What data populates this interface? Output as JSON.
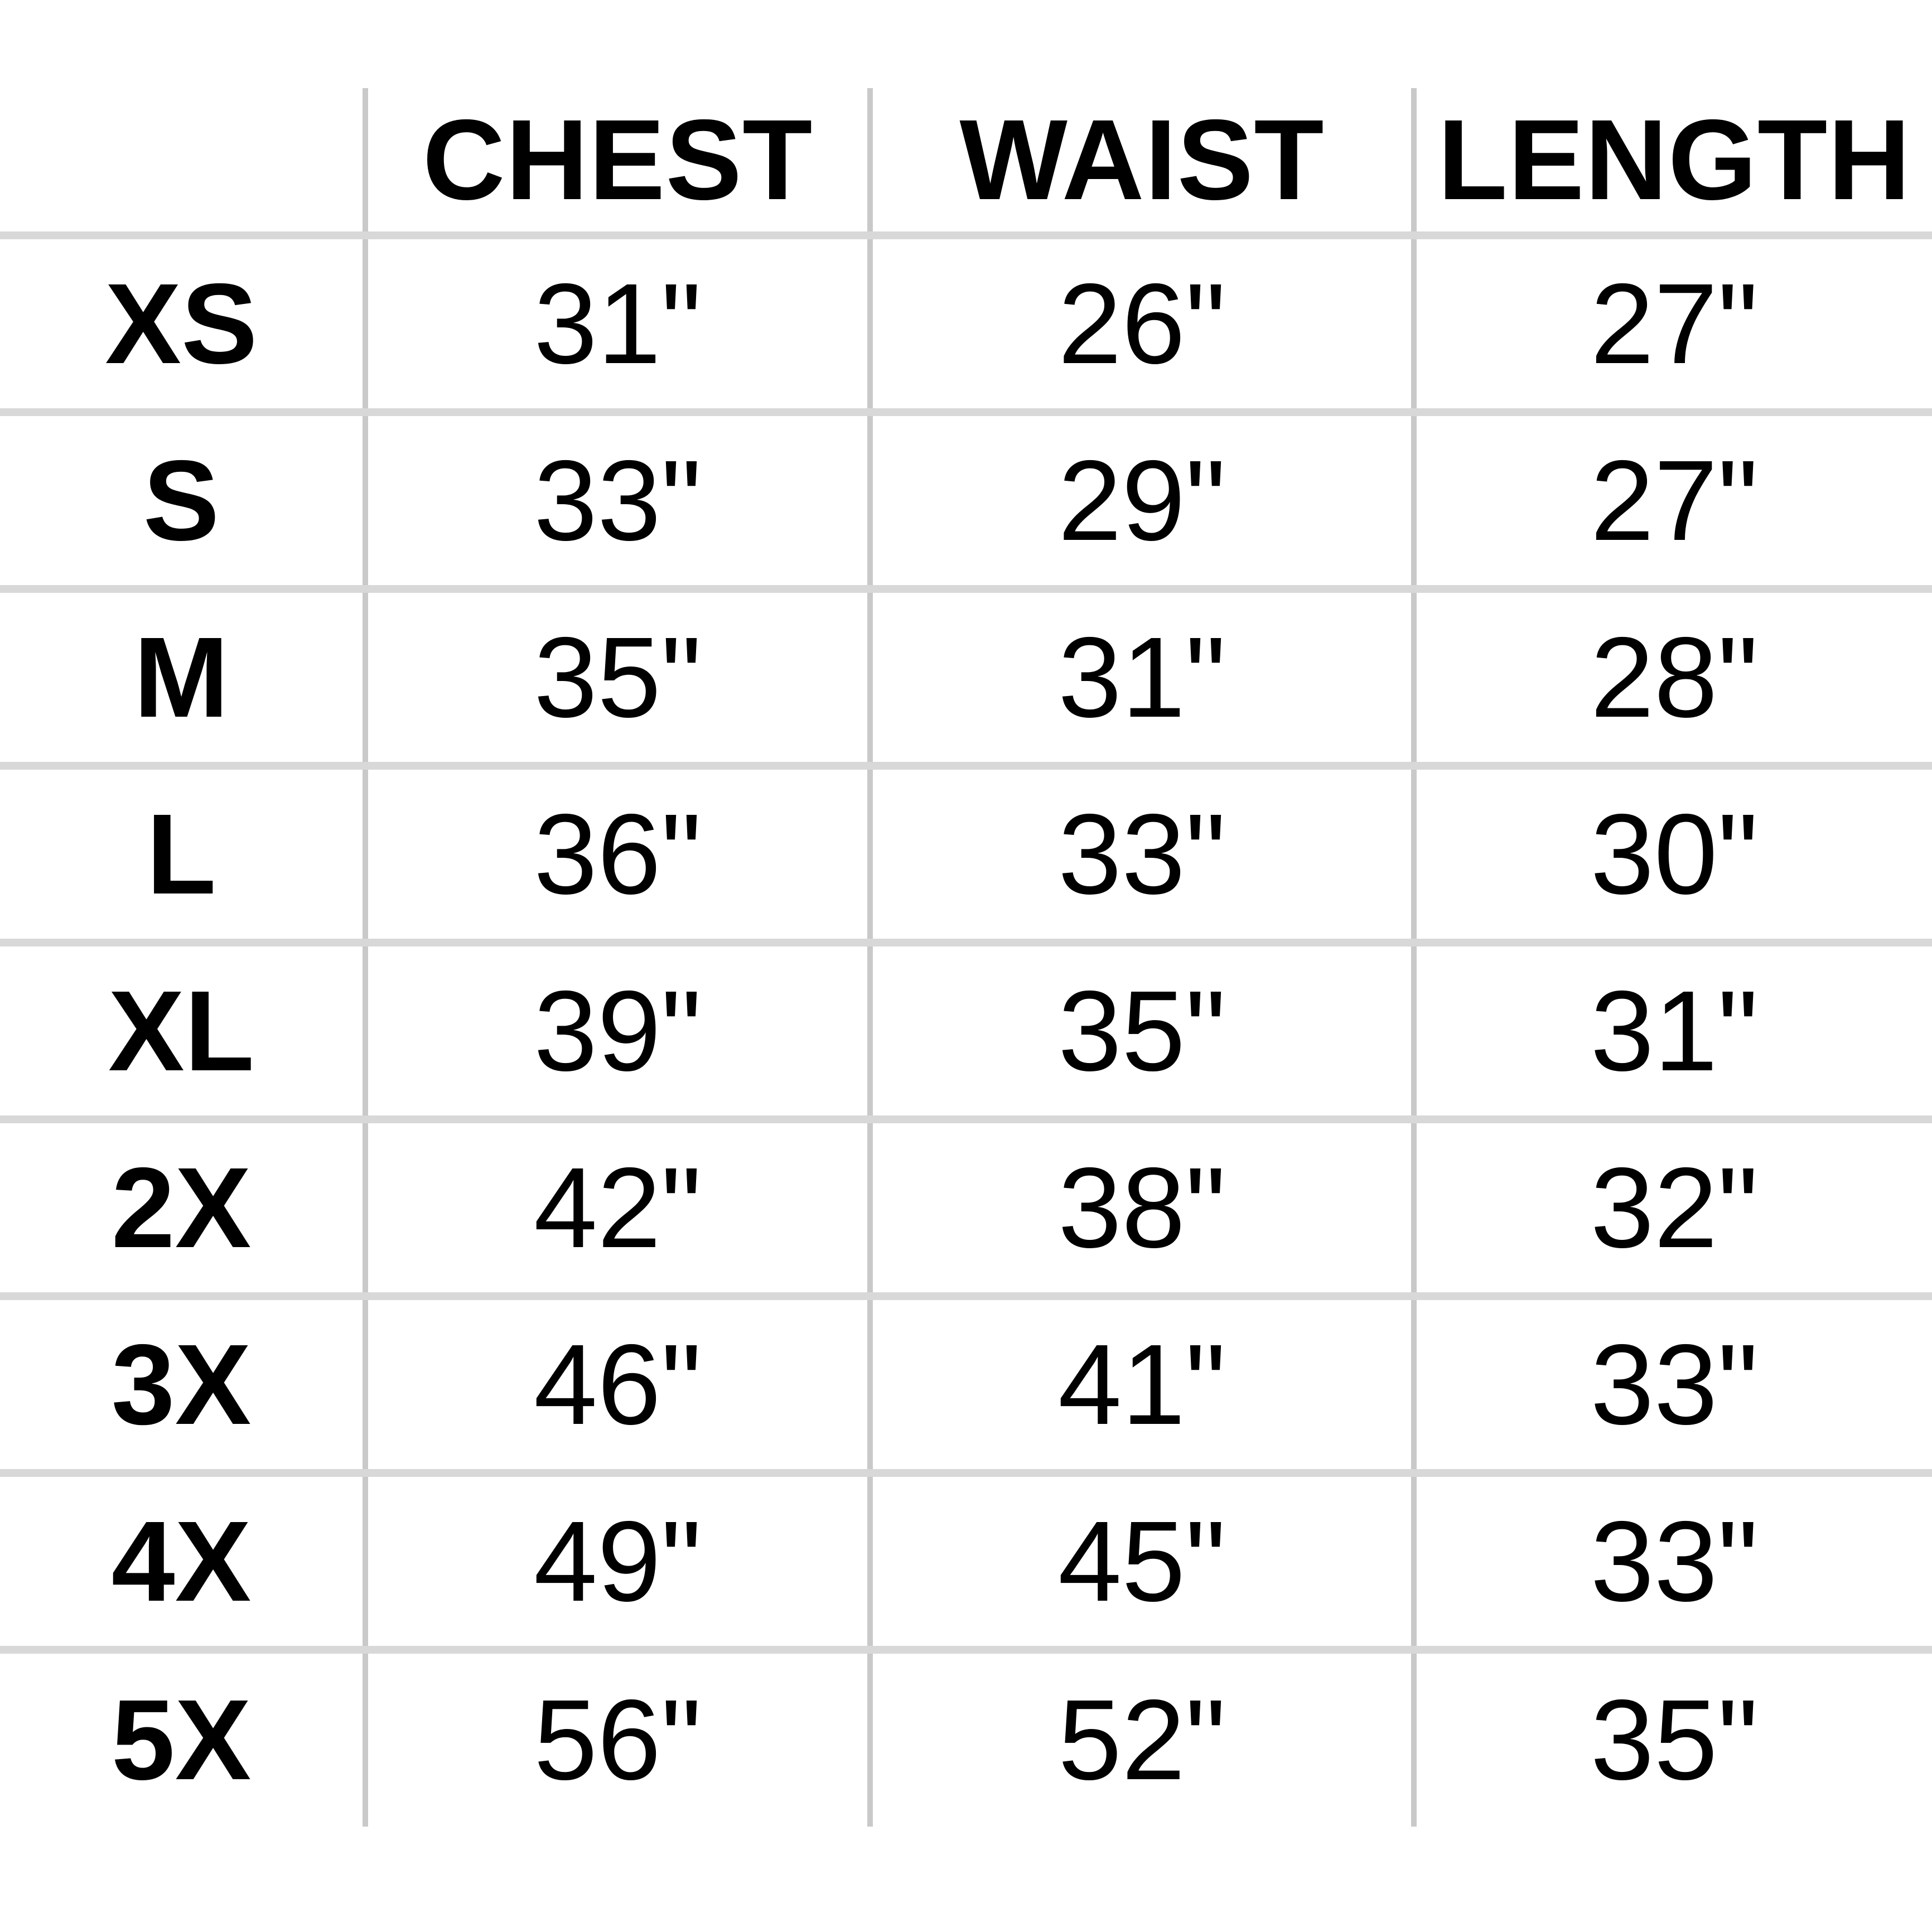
{
  "chart_data": {
    "type": "table",
    "title": "",
    "columns": [
      "",
      "CHEST",
      "WAIST",
      "LENGTH"
    ],
    "rows": [
      [
        "XS",
        "31\"",
        "26\"",
        "27\""
      ],
      [
        "S",
        "33\"",
        "29\"",
        "27\""
      ],
      [
        "M",
        "35\"",
        "31\"",
        "28\""
      ],
      [
        "L",
        "36\"",
        "33\"",
        "30\""
      ],
      [
        "XL",
        "39\"",
        "35\"",
        "31\""
      ],
      [
        "2X",
        "42\"",
        "38\"",
        "32\""
      ],
      [
        "3X",
        "46\"",
        "41\"",
        "33\""
      ],
      [
        "4X",
        "49\"",
        "45\"",
        "33\""
      ],
      [
        "5X",
        "56\"",
        "52\"",
        "35\""
      ]
    ],
    "layout": {
      "grid": "on",
      "outer_border": "none",
      "header_row_bold": true,
      "size_column_bold": true
    }
  },
  "colors": {
    "background": "#ffffff",
    "text": "#000000",
    "grid_vertical": "#c9c9c9",
    "grid_horizontal": "#d8d8d8"
  }
}
